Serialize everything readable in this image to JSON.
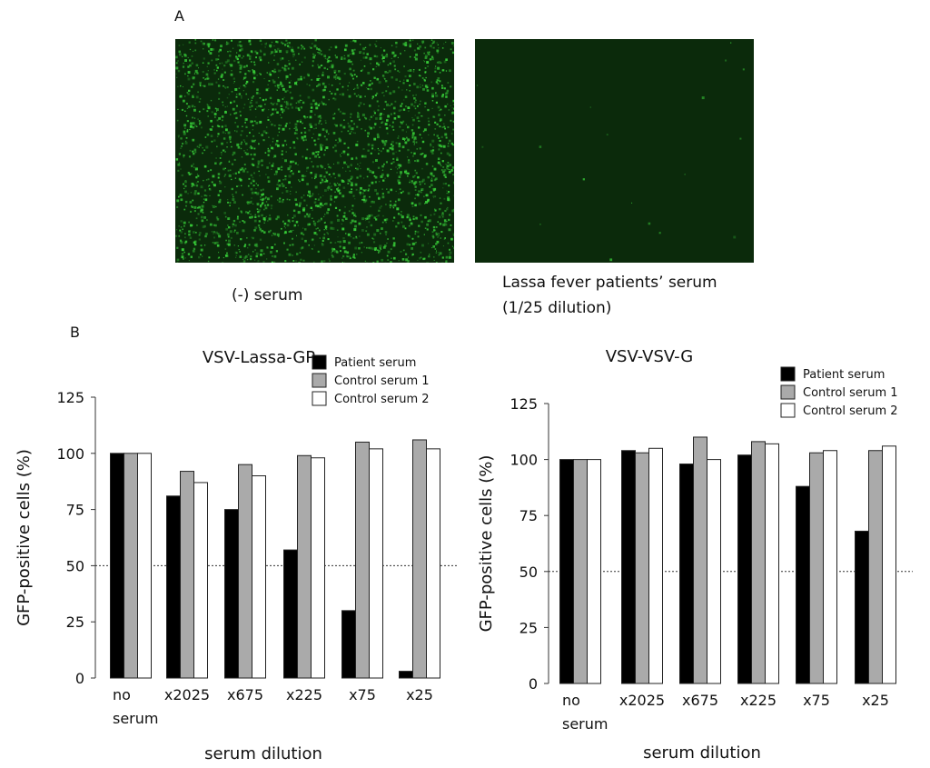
{
  "panel_a": {
    "letter": "A",
    "image_left_caption": "(-) serum",
    "image_right_caption_line1": "Lassa fever patients’ serum",
    "image_right_caption_line2": "(1/25 dilution)"
  },
  "panel_b": {
    "letter": "B"
  },
  "colors": {
    "patient": "#000000",
    "control1": "#aaaaaa",
    "control2": "#ffffff",
    "gfp": "#39d13a",
    "image_bg": "#0b2a0b"
  },
  "chart_data": [
    {
      "type": "bar",
      "title": "VSV-Lassa-GP",
      "xlabel": "serum dilution",
      "ylabel": "GFP-positive cells (%)",
      "ylim": [
        0,
        125
      ],
      "yticks": [
        "0",
        "25",
        "50",
        "75",
        "100",
        "125"
      ],
      "categories": [
        [
          "no",
          "serum"
        ],
        [
          "x2025"
        ],
        [
          "x675"
        ],
        [
          "x225"
        ],
        [
          "x75"
        ],
        [
          "x25"
        ]
      ],
      "reference_line": 50,
      "series": [
        {
          "name": "Patient serum",
          "values": [
            100,
            81,
            75,
            57,
            30,
            3
          ]
        },
        {
          "name": "Control serum 1",
          "values": [
            100,
            92,
            95,
            99,
            105,
            106
          ]
        },
        {
          "name": "Control serum 2",
          "values": [
            100,
            87,
            90,
            98,
            102,
            102
          ]
        }
      ],
      "legend_position": "top-right"
    },
    {
      "type": "bar",
      "title": "VSV-VSV-G",
      "xlabel": "serum dilution",
      "ylabel": "GFP-positive cells (%)",
      "ylim": [
        0,
        125
      ],
      "yticks": [
        "0",
        "25",
        "50",
        "75",
        "100",
        "125"
      ],
      "categories": [
        [
          "no",
          "serum"
        ],
        [
          "x2025"
        ],
        [
          "x675"
        ],
        [
          "x225"
        ],
        [
          "x75"
        ],
        [
          "x25"
        ]
      ],
      "reference_line": 50,
      "series": [
        {
          "name": "Patient serum",
          "values": [
            100,
            104,
            98,
            102,
            88,
            68
          ]
        },
        {
          "name": "Control serum 1",
          "values": [
            100,
            103,
            110,
            108,
            103,
            104
          ]
        },
        {
          "name": "Control serum 2",
          "values": [
            100,
            105,
            100,
            107,
            104,
            106
          ]
        }
      ],
      "legend_position": "top-right"
    }
  ]
}
